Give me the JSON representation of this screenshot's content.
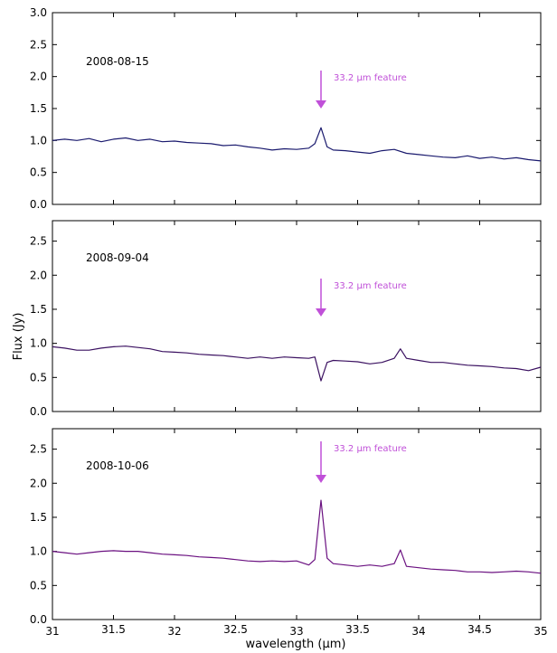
{
  "chart_data": {
    "type": "line",
    "xlabel": "wavelength (μm)",
    "ylabel": "Flux (Jy)",
    "xlim": [
      31,
      35
    ],
    "x_ticks": [
      "31",
      "31.5",
      "32",
      "32.5",
      "33",
      "33.5",
      "34",
      "34.5",
      "35"
    ],
    "annotation_color": "#c050d8",
    "grid": false,
    "panels": [
      {
        "date": "2008-08-15",
        "color": "#1a1a6e",
        "ylim": [
          0,
          3.0
        ],
        "y_ticks": [
          "0.0",
          "0.5",
          "1.0",
          "1.5",
          "2.0",
          "2.5",
          "3.0"
        ],
        "annotation": "33.2 μm feature",
        "x": [
          31.0,
          31.1,
          31.2,
          31.3,
          31.4,
          31.5,
          31.6,
          31.7,
          31.8,
          31.9,
          32.0,
          32.1,
          32.2,
          32.3,
          32.4,
          32.5,
          32.6,
          32.7,
          32.8,
          32.9,
          33.0,
          33.1,
          33.15,
          33.2,
          33.25,
          33.3,
          33.4,
          33.5,
          33.6,
          33.7,
          33.8,
          33.9,
          34.0,
          34.1,
          34.2,
          34.3,
          34.4,
          34.5,
          34.6,
          34.7,
          34.8,
          34.9,
          35.0
        ],
        "values": [
          1.0,
          1.02,
          1.0,
          1.03,
          0.98,
          1.02,
          1.04,
          1.0,
          1.02,
          0.98,
          0.99,
          0.97,
          0.96,
          0.95,
          0.92,
          0.93,
          0.9,
          0.88,
          0.85,
          0.87,
          0.86,
          0.88,
          0.95,
          1.2,
          0.9,
          0.85,
          0.84,
          0.82,
          0.8,
          0.84,
          0.86,
          0.8,
          0.78,
          0.76,
          0.74,
          0.73,
          0.76,
          0.72,
          0.74,
          0.71,
          0.73,
          0.7,
          0.68
        ]
      },
      {
        "date": "2008-09-04",
        "color": "#3a1060",
        "ylim": [
          0,
          2.8
        ],
        "y_ticks": [
          "0.0",
          "0.5",
          "1.0",
          "1.5",
          "2.0",
          "2.5"
        ],
        "annotation": "33.2 μm feature",
        "x": [
          31.0,
          31.1,
          31.2,
          31.3,
          31.4,
          31.5,
          31.6,
          31.7,
          31.8,
          31.9,
          32.0,
          32.1,
          32.2,
          32.3,
          32.4,
          32.5,
          32.6,
          32.7,
          32.8,
          32.9,
          33.0,
          33.1,
          33.15,
          33.2,
          33.25,
          33.3,
          33.4,
          33.5,
          33.6,
          33.7,
          33.8,
          33.85,
          33.9,
          34.0,
          34.1,
          34.2,
          34.3,
          34.4,
          34.5,
          34.6,
          34.7,
          34.8,
          34.9,
          35.0
        ],
        "values": [
          0.95,
          0.93,
          0.9,
          0.9,
          0.93,
          0.95,
          0.96,
          0.94,
          0.92,
          0.88,
          0.87,
          0.86,
          0.84,
          0.83,
          0.82,
          0.8,
          0.78,
          0.8,
          0.78,
          0.8,
          0.79,
          0.78,
          0.8,
          0.45,
          0.72,
          0.75,
          0.74,
          0.73,
          0.7,
          0.72,
          0.78,
          0.92,
          0.78,
          0.75,
          0.72,
          0.72,
          0.7,
          0.68,
          0.67,
          0.66,
          0.64,
          0.63,
          0.6,
          0.65
        ]
      },
      {
        "date": "2008-10-06",
        "color": "#6a1080",
        "ylim": [
          0,
          2.8
        ],
        "y_ticks": [
          "0.0",
          "0.5",
          "1.0",
          "1.5",
          "2.0",
          "2.5"
        ],
        "annotation": "33.2 μm feature",
        "x": [
          31.0,
          31.1,
          31.2,
          31.3,
          31.4,
          31.5,
          31.6,
          31.7,
          31.8,
          31.9,
          32.0,
          32.1,
          32.2,
          32.3,
          32.4,
          32.5,
          32.6,
          32.7,
          32.8,
          32.9,
          33.0,
          33.1,
          33.15,
          33.2,
          33.25,
          33.3,
          33.4,
          33.5,
          33.6,
          33.7,
          33.8,
          33.85,
          33.9,
          34.0,
          34.1,
          34.2,
          34.3,
          34.4,
          34.5,
          34.6,
          34.7,
          34.8,
          34.9,
          35.0
        ],
        "values": [
          1.0,
          0.98,
          0.96,
          0.98,
          1.0,
          1.01,
          1.0,
          1.0,
          0.98,
          0.96,
          0.95,
          0.94,
          0.92,
          0.91,
          0.9,
          0.88,
          0.86,
          0.85,
          0.86,
          0.85,
          0.86,
          0.8,
          0.88,
          1.75,
          0.9,
          0.82,
          0.8,
          0.78,
          0.8,
          0.78,
          0.82,
          1.02,
          0.78,
          0.76,
          0.74,
          0.73,
          0.72,
          0.7,
          0.7,
          0.69,
          0.7,
          0.71,
          0.7,
          0.68
        ]
      }
    ]
  }
}
